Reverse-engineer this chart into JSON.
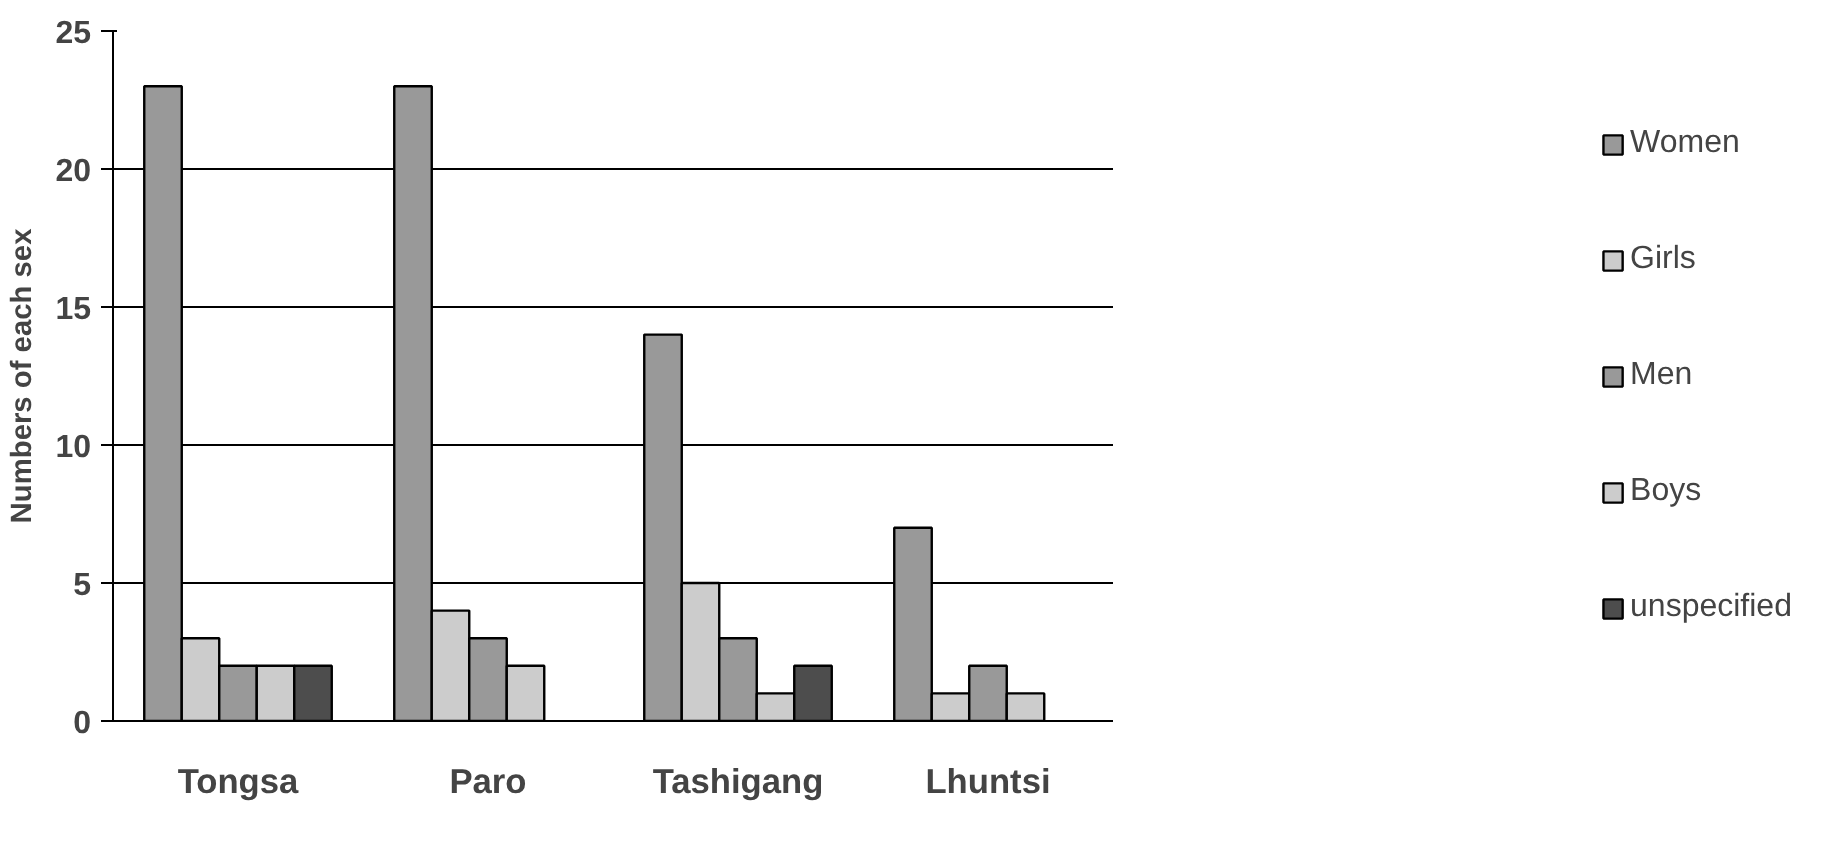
{
  "chart_data": {
    "type": "bar",
    "ylabel": "Numbers of each sex",
    "categories": [
      "Tongsa",
      "Paro",
      "Tashigang",
      "Lhuntsi"
    ],
    "series": [
      {
        "name": "Women",
        "color": "#999999",
        "values": [
          23,
          23,
          14,
          7
        ]
      },
      {
        "name": "Girls",
        "color": "#cccccc",
        "values": [
          3,
          4,
          5,
          1
        ]
      },
      {
        "name": "Men",
        "color": "#999999",
        "values": [
          2,
          3,
          3,
          2
        ]
      },
      {
        "name": "Boys",
        "color": "#cccccc",
        "values": [
          2,
          2,
          1,
          1
        ]
      },
      {
        "name": "unspecified",
        "color": "#4d4d4d",
        "values": [
          2,
          null,
          2,
          null
        ]
      }
    ],
    "ylim": [
      0,
      25
    ],
    "yticks": [
      0,
      5,
      10,
      15,
      20,
      25
    ],
    "grid": "y",
    "legend": "right"
  }
}
